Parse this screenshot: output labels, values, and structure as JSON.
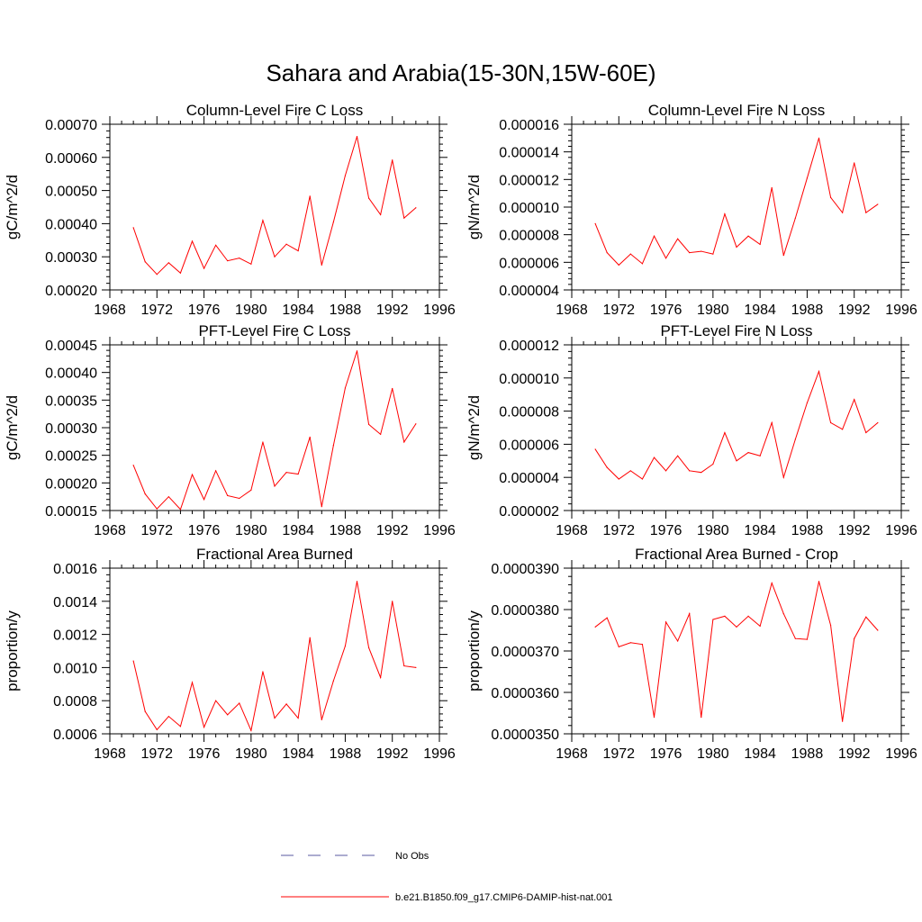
{
  "figure": {
    "title": "Sahara and Arabia(15-30N,15W-60E)",
    "series_color": "#ff0000",
    "obs_color": "#5a5aa0"
  },
  "legend": [
    {
      "label": "No Obs",
      "style": "dashed",
      "color": "#5a5aa0"
    },
    {
      "label": "b.e21.B1850.f09_g17.CMIP6-DAMIP-hist-nat.001",
      "style": "solid",
      "color": "#ff0000"
    }
  ],
  "chart_data": [
    {
      "type": "line",
      "title": "Column-Level Fire C Loss",
      "xlabel": "",
      "ylabel": "gC/m^2/d",
      "xlim": [
        1968,
        1996
      ],
      "ylim": [
        0.0002,
        0.0007
      ],
      "x_ticks": [
        "1968",
        "1972",
        "1976",
        "1980",
        "1984",
        "1988",
        "1992",
        "1996"
      ],
      "y_ticks": [
        "0.00020",
        "0.00030",
        "0.00040",
        "0.00050",
        "0.00060",
        "0.00070"
      ],
      "x": [
        1970,
        1971,
        1972,
        1973,
        1974,
        1975,
        1976,
        1977,
        1978,
        1979,
        1980,
        1981,
        1982,
        1983,
        1984,
        1985,
        1986,
        1987,
        1988,
        1989,
        1990,
        1991,
        1992,
        1993,
        1994
      ],
      "series": [
        {
          "values": [
            0.000388,
            0.000285,
            0.000247,
            0.000282,
            0.000251,
            0.000347,
            0.000265,
            0.000335,
            0.000288,
            0.000296,
            0.000278,
            0.00041,
            0.0003,
            0.000338,
            0.000318,
            0.000483,
            0.000275,
            0.000405,
            0.000545,
            0.000663,
            0.000477,
            0.000427,
            0.000592,
            0.000417,
            0.000448
          ]
        }
      ]
    },
    {
      "type": "line",
      "title": "Column-Level Fire N Loss",
      "xlabel": "",
      "ylabel": "gN/m^2/d",
      "xlim": [
        1968,
        1996
      ],
      "ylim": [
        4e-06,
        1.6e-05
      ],
      "x_ticks": [
        "1968",
        "1972",
        "1976",
        "1980",
        "1984",
        "1988",
        "1992",
        "1996"
      ],
      "y_ticks": [
        "0.000004",
        "0.000006",
        "0.000008",
        "0.000010",
        "0.000012",
        "0.000014",
        "0.000016"
      ],
      "x": [
        1970,
        1971,
        1972,
        1973,
        1974,
        1975,
        1976,
        1977,
        1978,
        1979,
        1980,
        1981,
        1982,
        1983,
        1984,
        1985,
        1986,
        1987,
        1988,
        1989,
        1990,
        1991,
        1992,
        1993,
        1994
      ],
      "series": [
        {
          "values": [
            8.8e-06,
            6.7e-06,
            5.8e-06,
            6.6e-06,
            5.9e-06,
            7.9e-06,
            6.3e-06,
            7.7e-06,
            6.7e-06,
            6.8e-06,
            6.6e-06,
            9.5e-06,
            7.1e-06,
            7.9e-06,
            7.3e-06,
            1.14e-05,
            6.5e-06,
            9.2e-06,
            1.21e-05,
            1.5e-05,
            1.07e-05,
            9.6e-06,
            1.32e-05,
            9.6e-06,
            1.02e-05
          ]
        }
      ]
    },
    {
      "type": "line",
      "title": "PFT-Level Fire C Loss",
      "xlabel": "",
      "ylabel": "gC/m^2/d",
      "xlim": [
        1968,
        1996
      ],
      "ylim": [
        0.00015,
        0.00045
      ],
      "x_ticks": [
        "1968",
        "1972",
        "1976",
        "1980",
        "1984",
        "1988",
        "1992",
        "1996"
      ],
      "y_ticks": [
        "0.00015",
        "0.00020",
        "0.00025",
        "0.00030",
        "0.00035",
        "0.00040",
        "0.00045"
      ],
      "x": [
        1970,
        1971,
        1972,
        1973,
        1974,
        1975,
        1976,
        1977,
        1978,
        1979,
        1980,
        1981,
        1982,
        1983,
        1984,
        1985,
        1986,
        1987,
        1988,
        1989,
        1990,
        1991,
        1992,
        1993,
        1994
      ],
      "series": [
        {
          "values": [
            0.000232,
            0.00018,
            0.000153,
            0.000175,
            0.000152,
            0.000215,
            0.00017,
            0.000222,
            0.000177,
            0.000172,
            0.000187,
            0.000274,
            0.000194,
            0.000219,
            0.000216,
            0.000283,
            0.000157,
            0.000268,
            0.000372,
            0.000439,
            0.000306,
            0.000288,
            0.000371,
            0.000274,
            0.000307
          ]
        }
      ]
    },
    {
      "type": "line",
      "title": "PFT-Level Fire N Loss",
      "xlabel": "",
      "ylabel": "gN/m^2/d",
      "xlim": [
        1968,
        1996
      ],
      "ylim": [
        2e-06,
        1.2e-05
      ],
      "x_ticks": [
        "1968",
        "1972",
        "1976",
        "1980",
        "1984",
        "1988",
        "1992",
        "1996"
      ],
      "y_ticks": [
        "0.000002",
        "0.000004",
        "0.000006",
        "0.000008",
        "0.000010",
        "0.000012"
      ],
      "x": [
        1970,
        1971,
        1972,
        1973,
        1974,
        1975,
        1976,
        1977,
        1978,
        1979,
        1980,
        1981,
        1982,
        1983,
        1984,
        1985,
        1986,
        1987,
        1988,
        1989,
        1990,
        1991,
        1992,
        1993,
        1994
      ],
      "series": [
        {
          "values": [
            5.7e-06,
            4.6e-06,
            3.9e-06,
            4.4e-06,
            3.9e-06,
            5.2e-06,
            4.4e-06,
            5.3e-06,
            4.4e-06,
            4.3e-06,
            4.8e-06,
            6.7e-06,
            5e-06,
            5.5e-06,
            5.3e-06,
            7.3e-06,
            4e-06,
            6.3e-06,
            8.5e-06,
            1.04e-05,
            7.3e-06,
            6.9e-06,
            8.7e-06,
            6.7e-06,
            7.3e-06
          ]
        }
      ]
    },
    {
      "type": "line",
      "title": "Fractional Area Burned",
      "xlabel": "",
      "ylabel": "proportion/y",
      "xlim": [
        1968,
        1996
      ],
      "ylim": [
        0.0006,
        0.0016
      ],
      "x_ticks": [
        "1968",
        "1972",
        "1976",
        "1980",
        "1984",
        "1988",
        "1992",
        "1996"
      ],
      "y_ticks": [
        "0.0006",
        "0.0008",
        "0.0010",
        "0.0012",
        "0.0014",
        "0.0016"
      ],
      "x": [
        1970,
        1971,
        1972,
        1973,
        1974,
        1975,
        1976,
        1977,
        1978,
        1979,
        1980,
        1981,
        1982,
        1983,
        1984,
        1985,
        1986,
        1987,
        1988,
        1989,
        1990,
        1991,
        1992,
        1993,
        1994
      ],
      "series": [
        {
          "values": [
            0.00104,
            0.000735,
            0.000625,
            0.000705,
            0.000645,
            0.00091,
            0.00064,
            0.0008,
            0.000715,
            0.000785,
            0.00062,
            0.000975,
            0.000695,
            0.00078,
            0.000695,
            0.00118,
            0.000685,
            0.00092,
            0.00113,
            0.00152,
            0.00112,
            0.00094,
            0.0014,
            0.00101,
            0.001
          ]
        }
      ]
    },
    {
      "type": "line",
      "title": "Fractional Area Burned - Crop",
      "xlabel": "",
      "ylabel": "proportion/y",
      "xlim": [
        1968,
        1996
      ],
      "ylim": [
        3.5e-05,
        3.9e-05
      ],
      "x_ticks": [
        "1968",
        "1972",
        "1976",
        "1980",
        "1984",
        "1988",
        "1992",
        "1996"
      ],
      "y_ticks": [
        "0.0000350",
        "0.0000360",
        "0.0000370",
        "0.0000380",
        "0.0000390"
      ],
      "x": [
        1970,
        1971,
        1972,
        1973,
        1974,
        1975,
        1976,
        1977,
        1978,
        1979,
        1980,
        1981,
        1982,
        1983,
        1984,
        1985,
        1986,
        1987,
        1988,
        1989,
        1990,
        1991,
        1992,
        1993,
        1994
      ],
      "series": [
        {
          "values": [
            3.758e-05,
            3.78e-05,
            3.71e-05,
            3.72e-05,
            3.716e-05,
            3.54e-05,
            3.77e-05,
            3.724e-05,
            3.79e-05,
            3.54e-05,
            3.776e-05,
            3.784e-05,
            3.758e-05,
            3.784e-05,
            3.76e-05,
            3.864e-05,
            3.79e-05,
            3.73e-05,
            3.728e-05,
            3.868e-05,
            3.762e-05,
            3.53e-05,
            3.73e-05,
            3.782e-05,
            3.75e-05
          ]
        }
      ]
    }
  ]
}
